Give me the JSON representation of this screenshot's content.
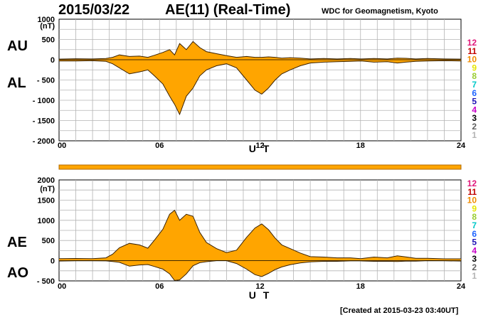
{
  "header": {
    "date": "2015/03/22",
    "title": "AE(11) (Real-Time)",
    "credit": "WDC for Geomagnetism, Kyoto",
    "created": "[Created at 2015-03-23 03:40UT]"
  },
  "legend": {
    "levels": [
      "12",
      "11",
      "10",
      "9",
      "8",
      "7",
      "6",
      "5",
      "4",
      "3",
      "2",
      "1"
    ],
    "colors": [
      "#e0177a",
      "#c00000",
      "#f08c00",
      "#e6e600",
      "#9acd32",
      "#00c8c8",
      "#1e64ff",
      "#1e14b4",
      "#c800c8",
      "#000000",
      "#606060",
      "#b4b4b4"
    ]
  },
  "chart_data": [
    {
      "type": "area",
      "name": "AU/AL",
      "title": "AE(11) (Real-Time)",
      "labels": {
        "upper": "AU",
        "lower": "AL"
      },
      "unit": "(nT)",
      "xlabel": "U T",
      "ylim": [
        -2000,
        1000
      ],
      "yticks": [
        {
          "v": 1000,
          "t": "1000"
        },
        {
          "v": 500,
          "t": "500"
        },
        {
          "v": 0,
          "t": "0"
        },
        {
          "v": -500,
          "t": "- 500"
        },
        {
          "v": -1000,
          "t": "- 1000"
        },
        {
          "v": -1500,
          "t": "- 1500"
        },
        {
          "v": -2000,
          "t": "- 2000"
        }
      ],
      "xlim": [
        0,
        24
      ],
      "xticks": [
        "00",
        "06",
        "12",
        "18",
        "24"
      ],
      "fill": "#ffa500",
      "series": [
        {
          "name": "AU",
          "x": [
            0,
            1,
            2,
            2.8,
            3.2,
            3.6,
            4.2,
            4.8,
            5.3,
            5.7,
            6.2,
            6.6,
            6.9,
            7.2,
            7.6,
            8.0,
            8.4,
            8.8,
            9.4,
            10,
            10.6,
            11.2,
            11.7,
            12.1,
            12.5,
            12.9,
            13.3,
            13.8,
            14.4,
            15,
            15.8,
            16.6,
            17.4,
            18,
            18.8,
            19.6,
            20.2,
            20.7,
            21.3,
            22,
            23,
            24
          ],
          "values": [
            15,
            25,
            20,
            30,
            60,
            120,
            80,
            90,
            60,
            110,
            180,
            250,
            120,
            400,
            250,
            450,
            300,
            200,
            150,
            100,
            60,
            80,
            60,
            60,
            70,
            60,
            40,
            50,
            40,
            20,
            30,
            20,
            30,
            20,
            30,
            20,
            40,
            35,
            20,
            30,
            20,
            15
          ]
        },
        {
          "name": "AL",
          "x": [
            0,
            1,
            2,
            2.8,
            3.2,
            3.6,
            4.2,
            4.8,
            5.3,
            5.7,
            6.2,
            6.6,
            6.9,
            7.2,
            7.6,
            8.0,
            8.4,
            8.8,
            9.4,
            10,
            10.6,
            11.2,
            11.7,
            12.1,
            12.5,
            12.9,
            13.3,
            13.8,
            14.4,
            15,
            15.8,
            16.6,
            17.4,
            18,
            18.8,
            19.6,
            20.2,
            20.7,
            21.3,
            22,
            23,
            24
          ],
          "values": [
            -30,
            -30,
            -25,
            -40,
            -100,
            -200,
            -350,
            -300,
            -250,
            -400,
            -600,
            -900,
            -1100,
            -1350,
            -900,
            -700,
            -400,
            -250,
            -150,
            -100,
            -200,
            -500,
            -750,
            -850,
            -700,
            -500,
            -350,
            -250,
            -150,
            -80,
            -60,
            -50,
            -40,
            -30,
            -60,
            -50,
            -80,
            -60,
            -40,
            -30,
            -25,
            -30
          ]
        }
      ]
    },
    {
      "type": "area",
      "name": "AE/AO",
      "labels": {
        "upper": "AE",
        "lower": "AO"
      },
      "unit": "(nT)",
      "xlabel": "U T",
      "ylim": [
        -500,
        2000
      ],
      "yticks": [
        {
          "v": 2000,
          "t": "2000"
        },
        {
          "v": 1500,
          "t": "1500"
        },
        {
          "v": 1000,
          "t": "1000"
        },
        {
          "v": 500,
          "t": "500"
        },
        {
          "v": 0,
          "t": "0"
        },
        {
          "v": -500,
          "t": "- 500"
        }
      ],
      "xlim": [
        0,
        24
      ],
      "xticks": [
        "00",
        "06",
        "12",
        "18",
        "24"
      ],
      "fill": "#ffa500",
      "series": [
        {
          "name": "AE",
          "x": [
            0,
            1,
            2,
            2.8,
            3.2,
            3.6,
            4.2,
            4.8,
            5.3,
            5.7,
            6.2,
            6.6,
            6.9,
            7.2,
            7.6,
            8.0,
            8.4,
            8.8,
            9.4,
            10,
            10.6,
            11.2,
            11.7,
            12.1,
            12.5,
            12.9,
            13.3,
            13.8,
            14.4,
            15,
            15.8,
            16.6,
            17.4,
            18,
            18.8,
            19.6,
            20.2,
            20.7,
            21.3,
            22,
            23,
            24
          ],
          "values": [
            50,
            55,
            50,
            70,
            160,
            320,
            430,
            390,
            310,
            510,
            780,
            1150,
            1250,
            1000,
            1150,
            1100,
            700,
            450,
            300,
            200,
            260,
            580,
            810,
            910,
            770,
            560,
            390,
            300,
            190,
            100,
            90,
            70,
            70,
            50,
            90,
            70,
            120,
            95,
            60,
            60,
            45,
            45
          ]
        },
        {
          "name": "AO",
          "x": [
            0,
            1,
            2,
            2.8,
            3.2,
            3.6,
            4.2,
            4.8,
            5.3,
            5.7,
            6.2,
            6.6,
            6.9,
            7.2,
            7.6,
            8.0,
            8.4,
            8.8,
            9.4,
            10,
            10.6,
            11.2,
            11.7,
            12.1,
            12.5,
            12.9,
            13.3,
            13.8,
            14.4,
            15,
            15.8,
            16.6,
            17.4,
            18,
            18.8,
            19.6,
            20.2,
            20.7,
            21.3,
            22,
            23,
            24
          ],
          "values": [
            -8,
            -3,
            -3,
            -5,
            -20,
            -40,
            -135,
            -105,
            -95,
            -145,
            -210,
            -325,
            -490,
            -475,
            -325,
            -125,
            -50,
            -25,
            0,
            0,
            -70,
            -210,
            -345,
            -395,
            -315,
            -220,
            -155,
            -100,
            -55,
            -30,
            -15,
            -15,
            -5,
            -5,
            -15,
            -15,
            -20,
            -12,
            -10,
            0,
            -3,
            -8
          ]
        }
      ]
    }
  ]
}
